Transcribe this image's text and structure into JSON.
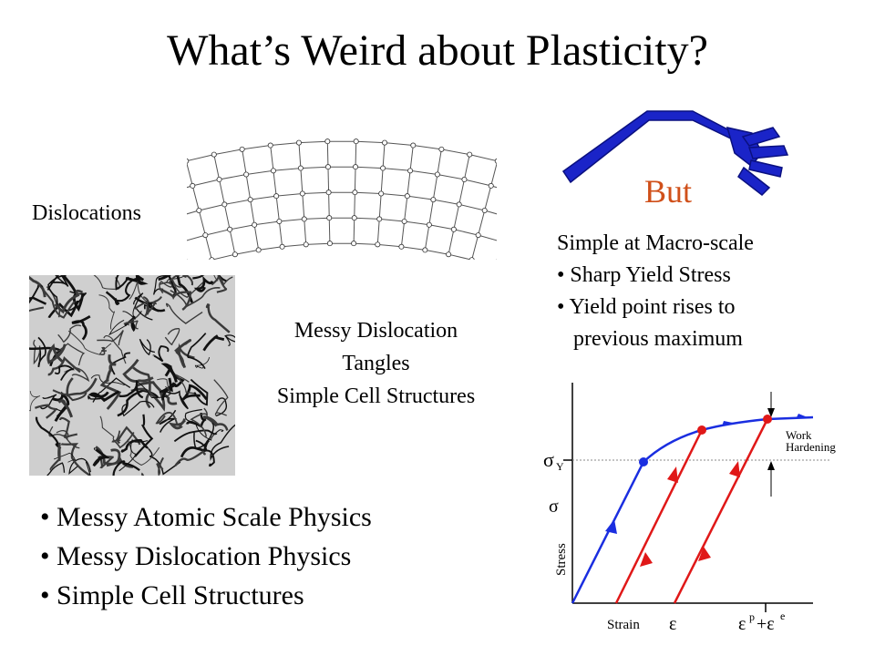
{
  "title": "What’s Weird about Plasticity?",
  "left_panel": {
    "dislocations_label": "Dislocations",
    "tangles_lines": [
      "Messy Dislocation",
      "Tangles",
      "Simple Cell Structures"
    ],
    "bullets": [
      "Messy Atomic Scale Physics",
      "Messy Dislocation Physics",
      "Simple Cell Structures"
    ]
  },
  "right_panel": {
    "but_label": "But",
    "heading": "Simple at Macro-scale",
    "bullets": [
      "Sharp Yield Stress",
      "Yield point rises to",
      "previous maximum"
    ]
  },
  "plot": {
    "sigma_y_label": "σ",
    "sigma_y_sub": "Y",
    "sigma_label": "σ",
    "ylabel": "Stress",
    "xlabel": "Strain",
    "epsilon_label": "ε",
    "epsilon_p_e_label": "ε",
    "p_sup": "p",
    "plus_epsilon": "+ε",
    "e_sup": "e",
    "work_hardening_1": "Work",
    "work_hardening_2": "Hardening",
    "colors": {
      "loading": "#1a2ee0",
      "unloading": "#e01818"
    }
  },
  "colors": {
    "but": "#d0501a",
    "fork": "#1a24c8"
  }
}
